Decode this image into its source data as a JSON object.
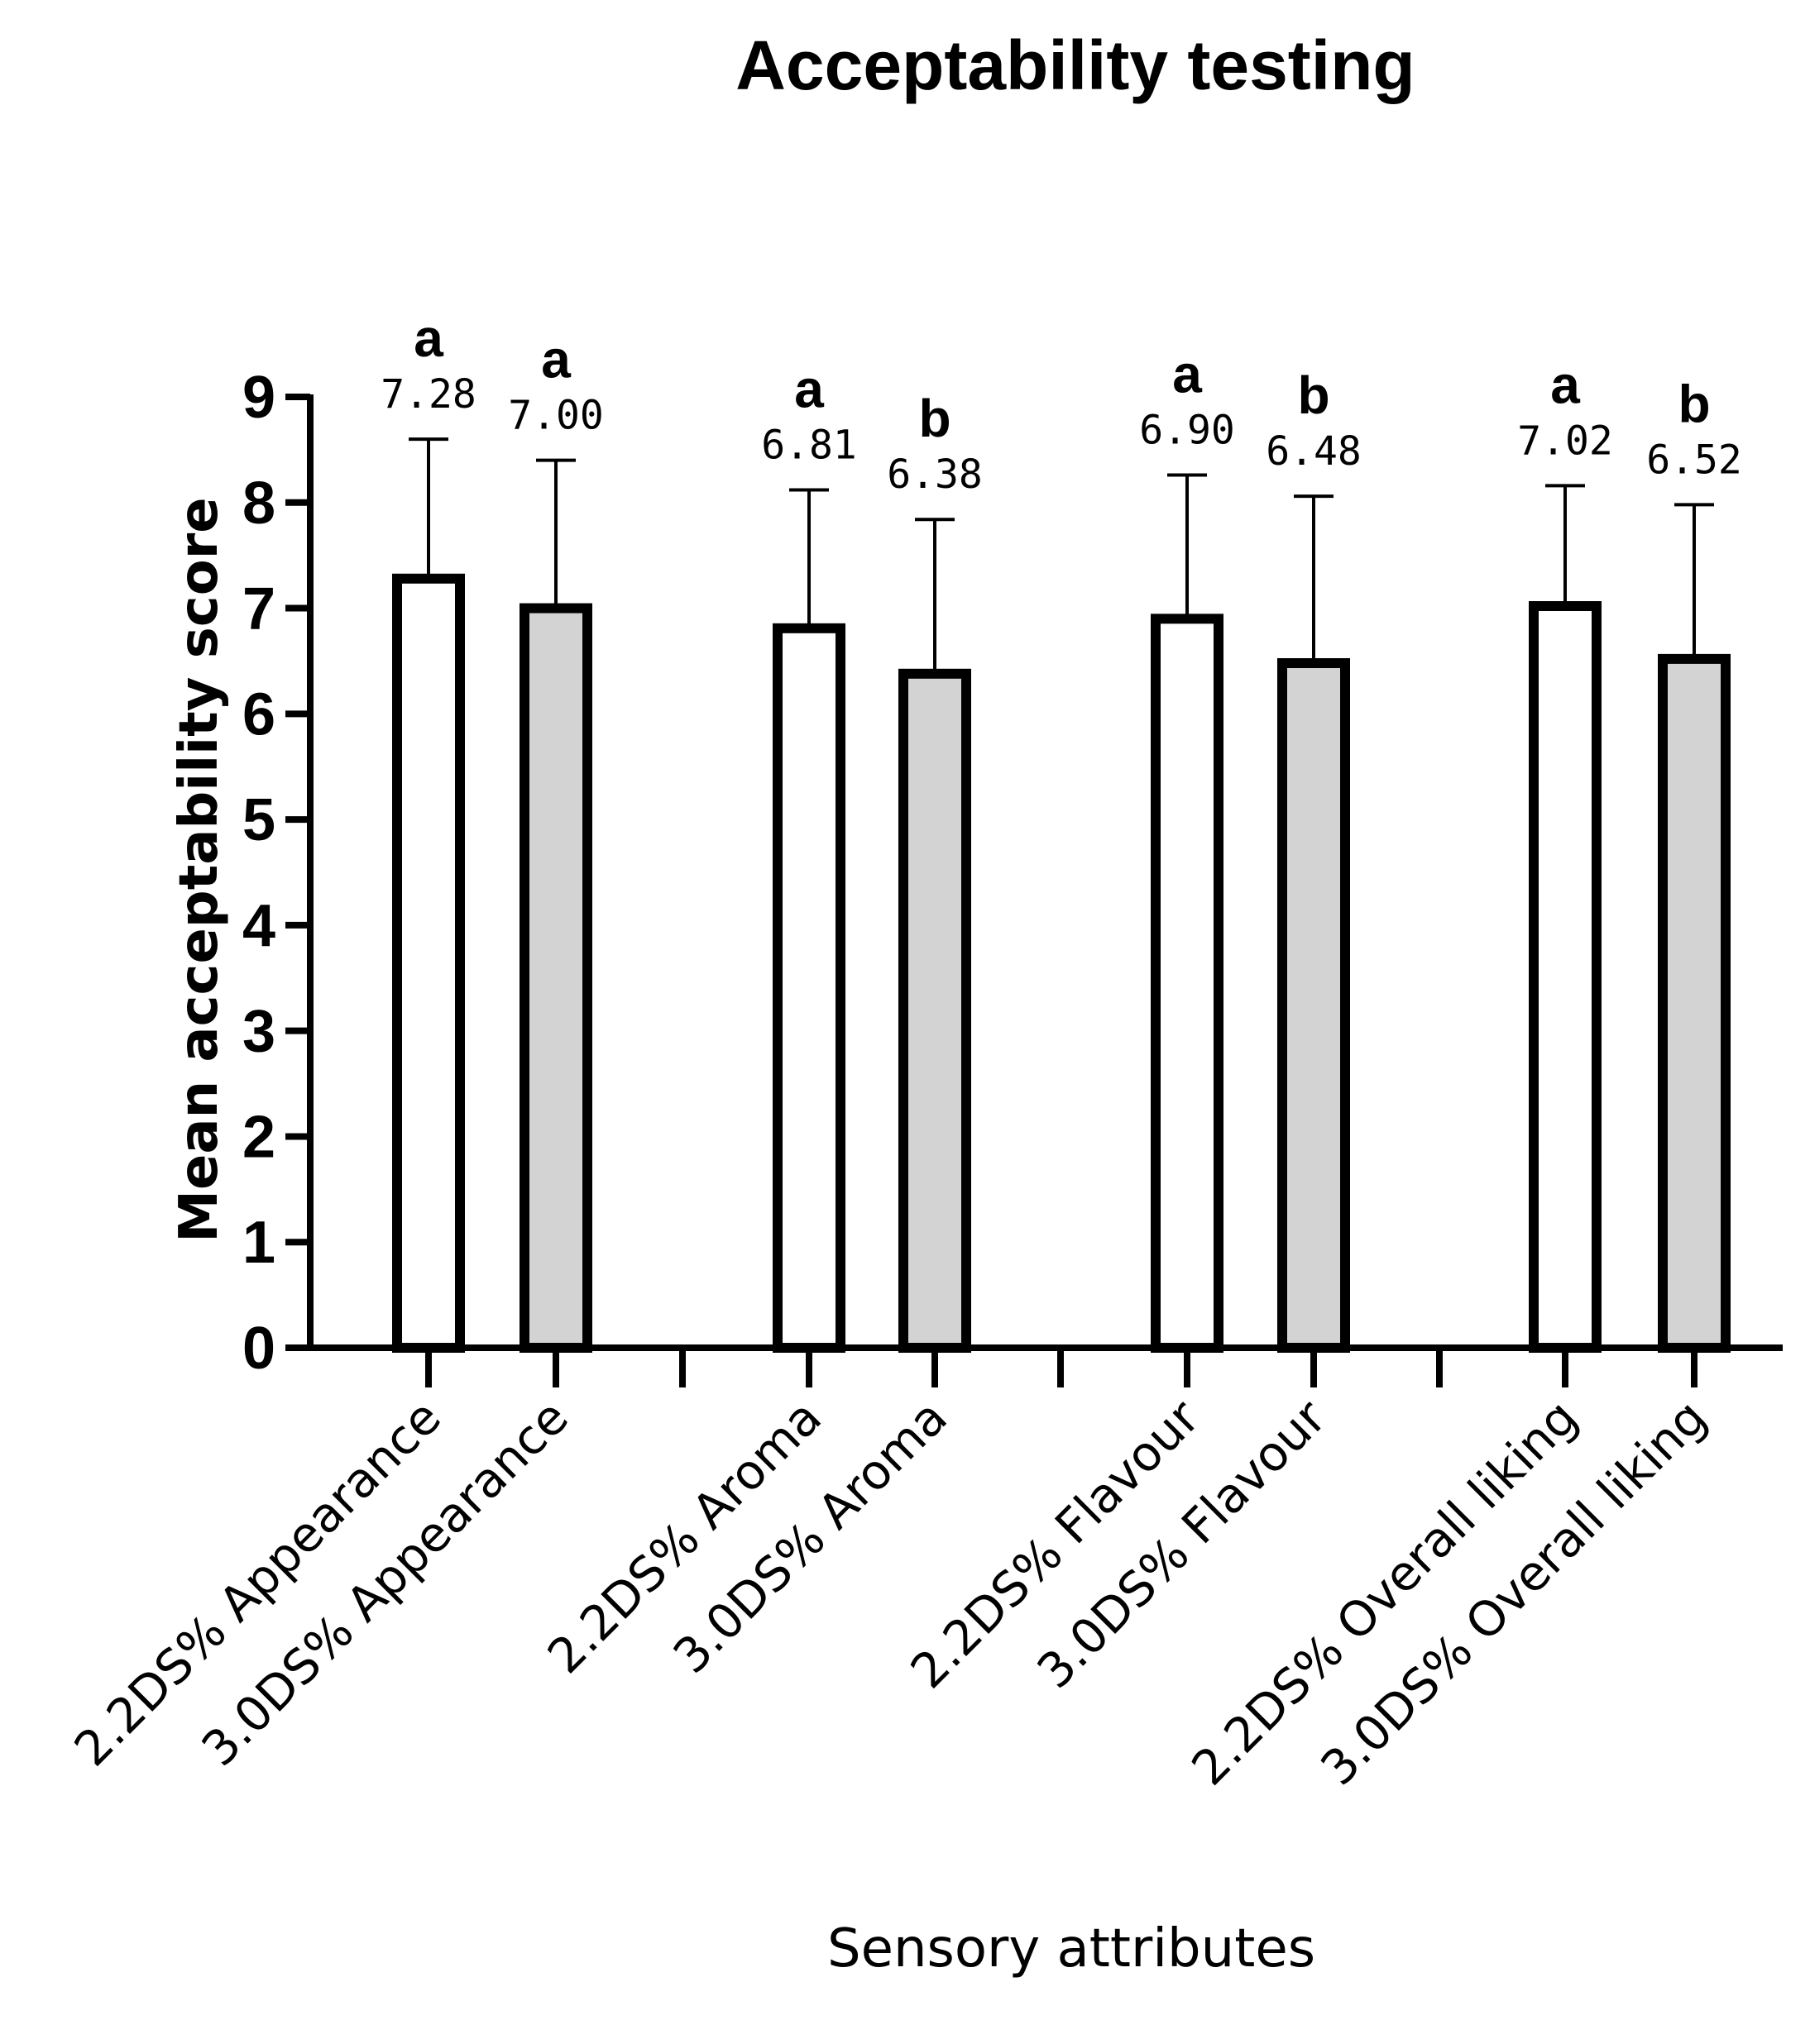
{
  "chart_data": {
    "type": "bar",
    "title": "Acceptability testing",
    "xlabel": "Sensory attributes",
    "ylabel": "Mean acceptability score",
    "ylim": [
      0,
      9
    ],
    "yticks": [
      "0",
      "1",
      "2",
      "3",
      "4",
      "5",
      "6",
      "7",
      "8",
      "9"
    ],
    "grid": false,
    "colors": {
      "2.2DS%": "#ffffff",
      "3.0DS%": "#d3d3d3",
      "stroke": "#000000"
    },
    "categories": [
      "2.2DS% Appearance",
      "3.0DS% Appearance",
      "2.2DS% Aroma",
      "3.0DS% Aroma",
      "2.2DS% Flavour",
      "3.0DS% Flavour",
      "2.2DS% Overall liking",
      "3.0DS% Overall liking"
    ],
    "values": [
      7.28,
      7.0,
      6.81,
      6.38,
      6.9,
      6.48,
      7.02,
      6.52
    ],
    "value_labels": [
      "7.28",
      "7.00",
      "6.81",
      "6.38",
      "6.90",
      "6.48",
      "7.02",
      "6.52"
    ],
    "error_upper": [
      8.6,
      8.4,
      8.12,
      7.84,
      8.26,
      8.06,
      8.16,
      7.98
    ],
    "significance": [
      "a",
      "a",
      "a",
      "b",
      "a",
      "b",
      "a",
      "b"
    ],
    "fill_group": [
      "2.2DS%",
      "3.0DS%",
      "2.2DS%",
      "3.0DS%",
      "2.2DS%",
      "3.0DS%",
      "2.2DS%",
      "3.0DS%"
    ]
  }
}
